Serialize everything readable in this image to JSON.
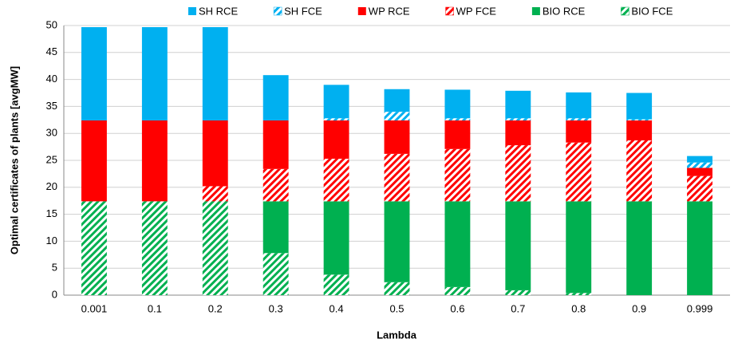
{
  "chart_data": {
    "type": "stacked_bar",
    "xlabel": "Lambda",
    "ylabel": "Optimal certificates of plants [avgMW]",
    "categories": [
      "0.001",
      "0.1",
      "0.2",
      "0.3",
      "0.4",
      "0.5",
      "0.6",
      "0.7",
      "0.8",
      "0.9",
      "0.999"
    ],
    "ylim": [
      0,
      50
    ],
    "yticks": [
      0,
      5,
      10,
      15,
      20,
      25,
      30,
      35,
      40,
      45,
      50
    ],
    "grid": true,
    "legend": "top",
    "series": [
      {
        "name": "BIO FCE",
        "color": "#00b050",
        "pattern": "hatch",
        "values": [
          17.4,
          17.4,
          17.4,
          7.8,
          3.8,
          2.4,
          1.5,
          0.9,
          0.4,
          0,
          0
        ]
      },
      {
        "name": "BIO RCE",
        "color": "#00b050",
        "pattern": "solid",
        "values": [
          0,
          0,
          0,
          9.6,
          13.6,
          15.0,
          15.9,
          16.5,
          17.0,
          17.4,
          17.4
        ]
      },
      {
        "name": "WP FCE",
        "color": "#ff0000",
        "pattern": "hatch",
        "values": [
          0,
          0,
          2.8,
          6.0,
          7.9,
          8.8,
          9.7,
          10.4,
          10.9,
          11.3,
          4.7
        ]
      },
      {
        "name": "WP RCE",
        "color": "#ff0000",
        "pattern": "solid",
        "values": [
          15.0,
          15.0,
          12.2,
          9.0,
          7.1,
          6.2,
          5.3,
          4.6,
          4.1,
          3.7,
          1.5
        ]
      },
      {
        "name": "SH FCE",
        "color": "#00b0f0",
        "pattern": "hatch",
        "values": [
          0,
          0,
          0,
          0,
          0.4,
          1.6,
          0.4,
          0.4,
          0.4,
          0.2,
          1.0
        ]
      },
      {
        "name": "SH RCE",
        "color": "#00b0f0",
        "pattern": "solid",
        "values": [
          17.3,
          17.3,
          17.3,
          8.4,
          6.2,
          4.2,
          5.3,
          5.1,
          4.8,
          4.9,
          1.2
        ]
      }
    ]
  }
}
